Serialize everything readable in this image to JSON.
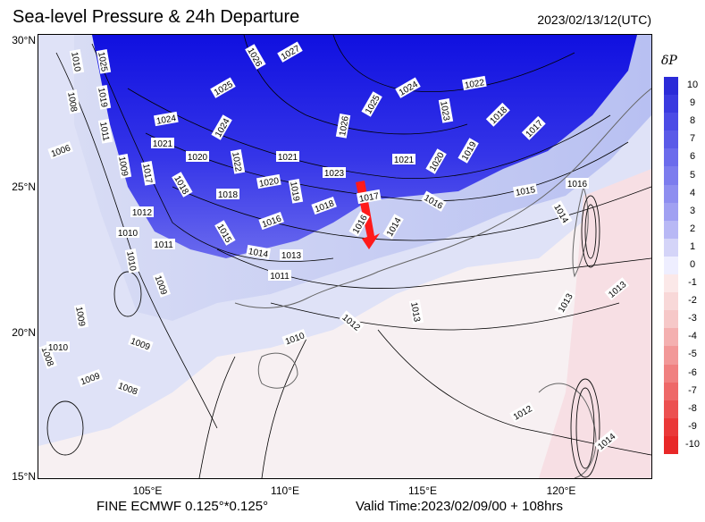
{
  "header": {
    "title": "Sea-level Pressure & 24h Departure",
    "datetime": "2023/02/13/12(UTC)"
  },
  "axes": {
    "lat_labels": [
      "30°N",
      "25°N",
      "20°N",
      "15°N"
    ],
    "lon_labels": [
      "105°E",
      "110°E",
      "115°E",
      "120°E"
    ]
  },
  "footer": {
    "model": "FINE ECMWF 0.125°*0.125°",
    "valid": "Valid Time:2023/02/09/00 + 108hrs"
  },
  "colorbar": {
    "title": "δP",
    "ticks": [
      "10",
      "9",
      "8",
      "7",
      "6",
      "5",
      "4",
      "3",
      "2",
      "1",
      "0",
      "-1",
      "-2",
      "-3",
      "-4",
      "-5",
      "-6",
      "-7",
      "-8",
      "-9",
      "-10"
    ],
    "colors": [
      "#2b2bd8",
      "#3a3ae0",
      "#4b4be6",
      "#5a5ae8",
      "#6b6bec",
      "#7c7cee",
      "#8e8ef0",
      "#a0a0f2",
      "#b8b8f5",
      "#d4d4f8",
      "#eeeeff",
      "#fbe8e8",
      "#f8d8d8",
      "#f6c8c8",
      "#f4b0b0",
      "#f29898",
      "#f08080",
      "#ee6868",
      "#ec5050",
      "#ea3838",
      "#e82828"
    ]
  },
  "isobars": [
    {
      "label": "1010"
    },
    {
      "label": "1025"
    },
    {
      "label": "1026"
    },
    {
      "label": "1027"
    },
    {
      "label": "1019"
    },
    {
      "label": "1008"
    },
    {
      "label": "1025"
    },
    {
      "label": "1024"
    },
    {
      "label": "1022"
    },
    {
      "label": "1025"
    },
    {
      "label": "1023"
    },
    {
      "label": "1018"
    },
    {
      "label": "1024"
    },
    {
      "label": "1024"
    },
    {
      "label": "1026"
    },
    {
      "label": "1017"
    },
    {
      "label": "1011"
    },
    {
      "label": "1021"
    },
    {
      "label": "1006"
    },
    {
      "label": "1020"
    },
    {
      "label": "1022"
    },
    {
      "label": "1021"
    },
    {
      "label": "1021"
    },
    {
      "label": "1020"
    },
    {
      "label": "1019"
    },
    {
      "label": "1009"
    },
    {
      "label": "1017"
    },
    {
      "label": "1023"
    },
    {
      "label": "1018"
    },
    {
      "label": "1020"
    },
    {
      "label": "1018"
    },
    {
      "label": "1019"
    },
    {
      "label": "1018"
    },
    {
      "label": "1017"
    },
    {
      "label": "1016"
    },
    {
      "label": "1015"
    },
    {
      "label": "1016"
    },
    {
      "label": "1012"
    },
    {
      "label": "1016"
    },
    {
      "label": "1016"
    },
    {
      "label": "1014"
    },
    {
      "label": "1014"
    },
    {
      "label": "1010"
    },
    {
      "label": "1015"
    },
    {
      "label": "1011"
    },
    {
      "label": "1014"
    },
    {
      "label": "1013"
    },
    {
      "label": "1010"
    },
    {
      "label": "1011"
    },
    {
      "label": "1009"
    },
    {
      "label": "1013"
    },
    {
      "label": "1013"
    },
    {
      "label": "1009"
    },
    {
      "label": "1012"
    },
    {
      "label": "1010"
    },
    {
      "label": "1009"
    },
    {
      "label": "1008"
    },
    {
      "label": "1010"
    },
    {
      "label": "1012"
    },
    {
      "label": "1013"
    },
    {
      "label": "1009"
    },
    {
      "label": "1008"
    },
    {
      "label": "1014"
    }
  ]
}
